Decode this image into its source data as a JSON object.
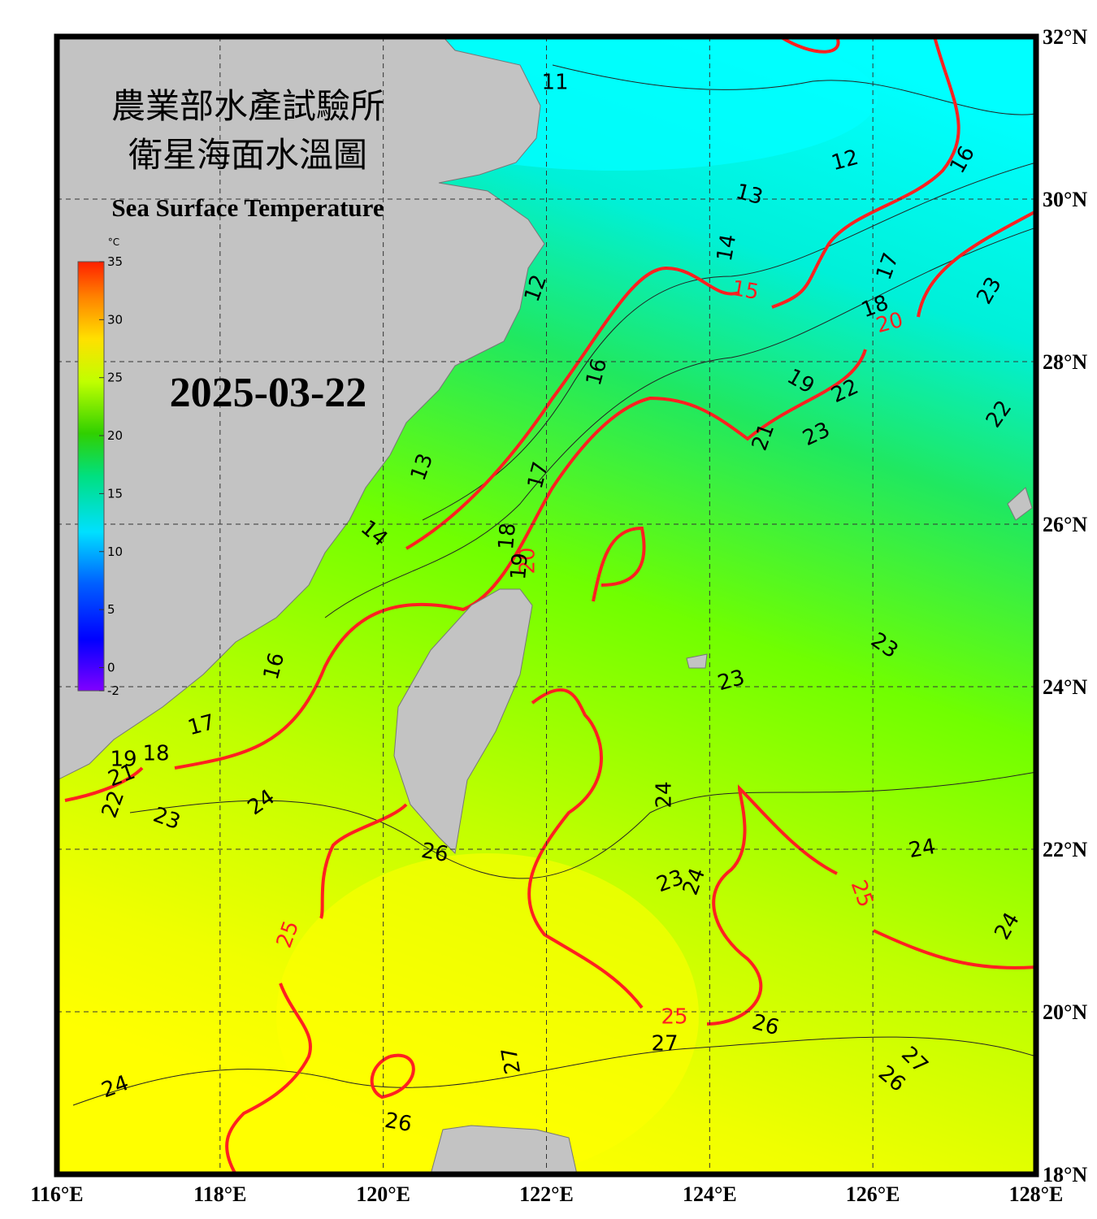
{
  "map": {
    "title_zh_1": "農業部水產試驗所",
    "title_zh_2": "衛星海面水溫圖",
    "title_en": "Sea Surface Temperature",
    "date": "2025-03-22",
    "lonlim": [
      116,
      128
    ],
    "latlim": [
      18,
      32
    ],
    "lon_ticks": [
      {
        "value": 116,
        "label": "116°E"
      },
      {
        "value": 118,
        "label": "118°E"
      },
      {
        "value": 120,
        "label": "120°E"
      },
      {
        "value": 122,
        "label": "122°E"
      },
      {
        "value": 124,
        "label": "124°E"
      },
      {
        "value": 126,
        "label": "126°E"
      },
      {
        "value": 128,
        "label": "128°E"
      }
    ],
    "lat_ticks": [
      {
        "value": 32,
        "label": "32°N"
      },
      {
        "value": 30,
        "label": "30°N"
      },
      {
        "value": 28,
        "label": "28°N"
      },
      {
        "value": 26,
        "label": "26°N"
      },
      {
        "value": 24,
        "label": "24°N"
      },
      {
        "value": 22,
        "label": "22°N"
      },
      {
        "value": 20,
        "label": "20°N"
      },
      {
        "value": 18,
        "label": "18°N"
      }
    ],
    "grid": true,
    "contour_color": "#000000",
    "major_contour_color": "#ff2020",
    "colorbar": {
      "unit": "°C",
      "lim": [
        -2,
        35
      ],
      "ticks": [
        35,
        30,
        25,
        20,
        15,
        10,
        5,
        0,
        -2
      ]
    },
    "contour_labels": [
      11,
      12,
      13,
      14,
      15,
      16,
      17,
      18,
      20,
      23,
      12,
      16,
      19,
      22,
      22,
      21,
      23,
      13,
      17,
      14,
      18,
      20,
      19,
      16,
      23,
      23,
      17,
      18,
      19,
      21,
      22,
      23,
      24,
      24,
      24,
      26,
      25,
      25,
      23,
      24,
      24,
      25,
      26,
      27,
      27,
      26,
      27,
      24,
      26
    ]
  }
}
